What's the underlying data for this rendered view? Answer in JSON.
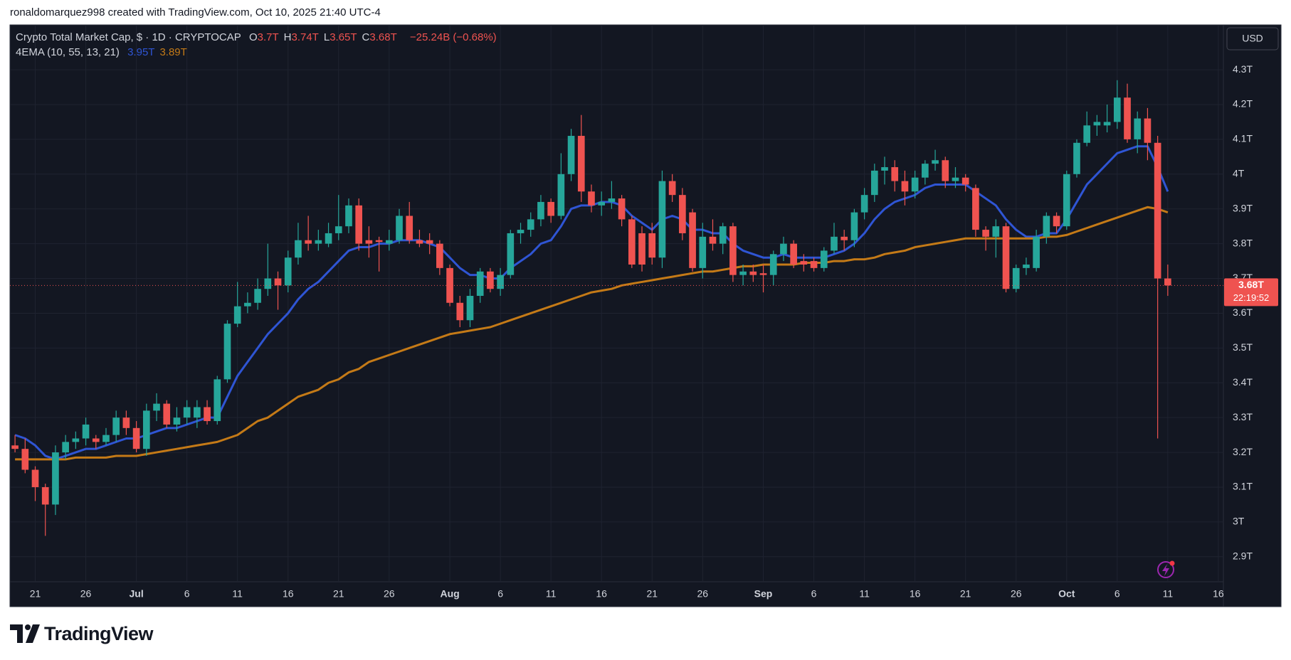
{
  "credit": "ronaldomarquez998 created with TradingView.com, Oct 10, 2025 21:40 UTC-4",
  "brand": "TradingView",
  "chart_data": {
    "type": "candlestick",
    "title": "Crypto Total Market Cap, $ · 1D · CRYPTOCAP",
    "ohlc_legend": [
      {
        "key": "O",
        "value": "3.7T"
      },
      {
        "key": "H",
        "value": "3.74T"
      },
      {
        "key": "L",
        "value": "3.65T"
      },
      {
        "key": "C",
        "value": "3.68T"
      }
    ],
    "change": "−25.24B (−0.68%)",
    "indicator": "4EMA (10, 55, 13, 21)",
    "currency": "USD",
    "last_price": {
      "label": "3.68T",
      "countdown": "22:19:52"
    },
    "up_color": "#26a69a",
    "down_color": "#ef5350",
    "grid": true,
    "ylim": [
      2.828,
      4.429
    ],
    "yticks": [
      {
        "value": 2.9,
        "label": "2.9T"
      },
      {
        "value": 3,
        "label": "3T"
      },
      {
        "value": 3.1,
        "label": "3.1T"
      },
      {
        "value": 3.2,
        "label": "3.2T"
      },
      {
        "value": 3.3,
        "label": "3.3T"
      },
      {
        "value": 3.4,
        "label": "3.4T"
      },
      {
        "value": 3.5,
        "label": "3.5T"
      },
      {
        "value": 3.6,
        "label": "3.6T"
      },
      {
        "value": 3.7,
        "label": "3.7T"
      },
      {
        "value": 3.8,
        "label": "3.8T"
      },
      {
        "value": 3.9,
        "label": "3.9T"
      },
      {
        "value": 4,
        "label": "4T"
      },
      {
        "value": 4.1,
        "label": "4.1T"
      },
      {
        "value": 4.2,
        "label": "4.2T"
      },
      {
        "value": 4.3,
        "label": "4.3T"
      }
    ],
    "categories": [
      null,
      null,
      "21",
      null,
      null,
      null,
      null,
      "26",
      null,
      null,
      null,
      null,
      "Jul",
      null,
      null,
      null,
      null,
      "6",
      null,
      null,
      null,
      null,
      "11",
      null,
      null,
      null,
      null,
      "16",
      null,
      null,
      null,
      null,
      "21",
      null,
      null,
      null,
      null,
      "26",
      null,
      null,
      null,
      null,
      null,
      "Aug",
      null,
      null,
      null,
      null,
      "6",
      null,
      null,
      null,
      null,
      "11",
      null,
      null,
      null,
      null,
      "16",
      null,
      null,
      null,
      null,
      "21",
      null,
      null,
      null,
      null,
      "26",
      null,
      null,
      null,
      null,
      null,
      "Sep",
      null,
      null,
      null,
      null,
      "6",
      null,
      null,
      null,
      null,
      "11",
      null,
      null,
      null,
      null,
      "16",
      null,
      null,
      null,
      null,
      "21",
      null,
      null,
      null,
      null,
      "26",
      null,
      null,
      null,
      null,
      "Oct",
      null,
      null,
      null,
      null,
      "6",
      null,
      null,
      null,
      null,
      "11",
      null,
      null,
      null,
      null,
      "16"
    ],
    "open": [
      3.22,
      3.21,
      3.15,
      3.1,
      3.05,
      3.2,
      3.23,
      3.24,
      3.24,
      3.23,
      3.25,
      3.3,
      3.27,
      3.21,
      3.32,
      3.34,
      3.28,
      3.3,
      3.3,
      3.33,
      3.29,
      3.41,
      3.57,
      3.62,
      3.63,
      3.67,
      3.7,
      3.68,
      3.76,
      3.81,
      3.8,
      3.8,
      3.83,
      3.85,
      3.91,
      3.81,
      3.81,
      3.8,
      3.81,
      3.88,
      3.81,
      3.81,
      3.8,
      3.73,
      3.63,
      3.58,
      3.65,
      3.72,
      3.67,
      3.71,
      3.83,
      3.84,
      3.87,
      3.92,
      3.88,
      4.0,
      4.11,
      3.95,
      3.91,
      3.92,
      3.93,
      3.87,
      3.83,
      3.83,
      3.76,
      3.98,
      3.94,
      3.89,
      3.73,
      3.82,
      3.8,
      3.85,
      3.71,
      3.72,
      3.715,
      3.71,
      3.77,
      3.8,
      3.75,
      3.75,
      3.73,
      3.78,
      3.82,
      3.81,
      3.89,
      3.94,
      4.01,
      4.02,
      3.98,
      3.95,
      3.99,
      4.03,
      4.04,
      3.98,
      3.99,
      3.96,
      3.84,
      3.82,
      3.85,
      3.67,
      3.73,
      3.73,
      3.82,
      3.88,
      3.85,
      4.0,
      4.09,
      4.14,
      4.14,
      4.15,
      4.22,
      4.1,
      4.16,
      4.09,
      3.7,
      null,
      null,
      null,
      null,
      null
    ],
    "high": [
      3.25,
      3.24,
      3.16,
      3.11,
      3.22,
      3.25,
      3.26,
      3.3,
      3.25,
      3.27,
      3.32,
      3.32,
      3.29,
      3.34,
      3.37,
      3.35,
      3.33,
      3.35,
      3.35,
      3.35,
      3.42,
      3.58,
      3.69,
      3.66,
      3.7,
      3.8,
      3.72,
      3.78,
      3.86,
      3.88,
      3.84,
      3.86,
      3.94,
      3.93,
      3.93,
      3.85,
      3.82,
      3.84,
      3.9,
      3.92,
      3.84,
      3.83,
      3.81,
      3.74,
      3.65,
      3.67,
      3.73,
      3.73,
      3.73,
      3.84,
      3.86,
      3.89,
      3.94,
      3.93,
      4.06,
      4.13,
      4.17,
      3.97,
      3.95,
      3.98,
      3.94,
      3.88,
      3.85,
      3.86,
      4.01,
      4.0,
      3.96,
      3.9,
      3.86,
      3.87,
      3.86,
      3.86,
      3.74,
      3.74,
      3.74,
      3.78,
      3.82,
      3.81,
      3.77,
      3.76,
      3.79,
      3.86,
      3.84,
      3.9,
      3.96,
      4.03,
      4.05,
      4.04,
      4.01,
      4.01,
      4.04,
      4.07,
      4.05,
      4.02,
      4.0,
      3.97,
      3.85,
      3.87,
      3.86,
      3.74,
      3.76,
      3.84,
      3.89,
      3.89,
      4.01,
      4.1,
      4.18,
      4.17,
      4.2,
      4.27,
      4.26,
      4.18,
      4.19,
      4.11,
      3.74,
      null,
      null,
      null,
      null,
      null
    ],
    "low": [
      3.2,
      3.14,
      3.06,
      2.96,
      3.02,
      3.18,
      3.21,
      3.22,
      3.21,
      3.22,
      3.23,
      3.25,
      3.2,
      3.19,
      3.29,
      3.27,
      3.26,
      3.28,
      3.27,
      3.28,
      3.28,
      3.4,
      3.56,
      3.6,
      3.61,
      3.65,
      3.61,
      3.66,
      3.74,
      3.78,
      3.78,
      3.79,
      3.81,
      3.83,
      3.78,
      3.76,
      3.72,
      3.78,
      3.8,
      3.8,
      3.79,
      3.77,
      3.71,
      3.62,
      3.56,
      3.56,
      3.63,
      3.66,
      3.65,
      3.7,
      3.8,
      3.82,
      3.85,
      3.86,
      3.87,
      3.98,
      3.92,
      3.89,
      3.88,
      3.9,
      3.85,
      3.73,
      3.72,
      3.74,
      3.73,
      3.92,
      3.81,
      3.72,
      3.7,
      3.78,
      3.77,
      3.69,
      3.68,
      3.69,
      3.66,
      3.68,
      3.75,
      3.73,
      3.72,
      3.72,
      3.72,
      3.77,
      3.78,
      3.79,
      3.87,
      3.92,
      3.97,
      3.95,
      3.91,
      3.93,
      3.97,
      4.01,
      3.96,
      3.96,
      3.95,
      3.82,
      3.78,
      3.76,
      3.66,
      3.66,
      3.71,
      3.72,
      3.8,
      3.83,
      3.84,
      3.99,
      4.08,
      4.11,
      4.12,
      4.13,
      4.09,
      4.06,
      4.04,
      3.24,
      3.65,
      null,
      null,
      null,
      null,
      null
    ],
    "close": [
      3.21,
      3.15,
      3.1,
      3.05,
      3.2,
      3.23,
      3.24,
      3.28,
      3.23,
      3.25,
      3.3,
      3.27,
      3.21,
      3.32,
      3.34,
      3.28,
      3.3,
      3.33,
      3.33,
      3.29,
      3.41,
      3.57,
      3.62,
      3.63,
      3.67,
      3.7,
      3.68,
      3.76,
      3.81,
      3.8,
      3.81,
      3.83,
      3.85,
      3.91,
      3.8,
      3.8,
      3.805,
      3.81,
      3.88,
      3.81,
      3.8,
      3.8,
      3.73,
      3.63,
      3.58,
      3.65,
      3.72,
      3.67,
      3.71,
      3.83,
      3.84,
      3.87,
      3.92,
      3.88,
      4.0,
      4.11,
      3.95,
      3.91,
      3.92,
      3.93,
      3.87,
      3.74,
      3.74,
      3.76,
      3.98,
      3.94,
      3.83,
      3.73,
      3.82,
      3.8,
      3.85,
      3.71,
      3.72,
      3.71,
      3.71,
      3.77,
      3.8,
      3.74,
      3.74,
      3.73,
      3.78,
      3.82,
      3.81,
      3.89,
      3.94,
      4.01,
      4.02,
      3.98,
      3.95,
      3.99,
      4.03,
      4.04,
      3.98,
      3.99,
      3.97,
      3.84,
      3.82,
      3.85,
      3.67,
      3.73,
      3.74,
      3.82,
      3.88,
      3.85,
      4.0,
      4.09,
      4.14,
      4.15,
      4.15,
      4.22,
      4.1,
      4.16,
      4.09,
      3.7,
      3.68,
      null,
      null,
      null,
      null,
      null
    ],
    "series": [
      {
        "color": "#2f55d4",
        "legend_value": "3.95T",
        "values": [
          3.25,
          3.24,
          3.22,
          3.19,
          3.18,
          3.19,
          3.2,
          3.21,
          3.21,
          3.22,
          3.23,
          3.24,
          3.24,
          3.25,
          3.26,
          3.27,
          3.27,
          3.28,
          3.29,
          3.3,
          3.3,
          3.36,
          3.42,
          3.46,
          3.5,
          3.54,
          3.57,
          3.6,
          3.64,
          3.67,
          3.69,
          3.72,
          3.75,
          3.78,
          3.79,
          3.79,
          3.8,
          3.8,
          3.81,
          3.81,
          3.81,
          3.8,
          3.79,
          3.76,
          3.73,
          3.71,
          3.71,
          3.7,
          3.7,
          3.73,
          3.75,
          3.77,
          3.8,
          3.81,
          3.85,
          3.9,
          3.91,
          3.91,
          3.92,
          3.92,
          3.91,
          3.88,
          3.86,
          3.84,
          3.87,
          3.88,
          3.87,
          3.84,
          3.84,
          3.83,
          3.83,
          3.8,
          3.78,
          3.77,
          3.76,
          3.76,
          3.77,
          3.76,
          3.76,
          3.76,
          3.76,
          3.77,
          3.78,
          3.8,
          3.83,
          3.87,
          3.9,
          3.92,
          3.93,
          3.94,
          3.96,
          3.97,
          3.97,
          3.97,
          3.97,
          3.95,
          3.93,
          3.91,
          3.87,
          3.84,
          3.82,
          3.82,
          3.83,
          3.83,
          3.87,
          3.92,
          3.97,
          4.0,
          4.03,
          4.06,
          4.07,
          4.08,
          4.08,
          4.02,
          3.95,
          null,
          null,
          null,
          null,
          null
        ]
      },
      {
        "color": "#c47a17",
        "legend_value": "3.89T",
        "values": [
          3.18,
          3.18,
          3.18,
          3.18,
          3.18,
          3.18,
          3.185,
          3.185,
          3.185,
          3.185,
          3.19,
          3.19,
          3.19,
          3.195,
          3.2,
          3.205,
          3.21,
          3.215,
          3.22,
          3.225,
          3.23,
          3.24,
          3.25,
          3.27,
          3.29,
          3.3,
          3.32,
          3.34,
          3.36,
          3.37,
          3.38,
          3.4,
          3.41,
          3.43,
          3.44,
          3.46,
          3.47,
          3.48,
          3.49,
          3.5,
          3.51,
          3.52,
          3.53,
          3.54,
          3.545,
          3.55,
          3.555,
          3.56,
          3.57,
          3.58,
          3.59,
          3.6,
          3.61,
          3.62,
          3.63,
          3.64,
          3.65,
          3.66,
          3.665,
          3.67,
          3.68,
          3.685,
          3.69,
          3.695,
          3.7,
          3.705,
          3.71,
          3.715,
          3.72,
          3.72,
          3.725,
          3.73,
          3.735,
          3.735,
          3.74,
          3.74,
          3.74,
          3.74,
          3.745,
          3.745,
          3.745,
          3.75,
          3.75,
          3.755,
          3.755,
          3.76,
          3.77,
          3.775,
          3.78,
          3.79,
          3.795,
          3.8,
          3.805,
          3.81,
          3.815,
          3.815,
          3.815,
          3.815,
          3.815,
          3.815,
          3.815,
          3.815,
          3.82,
          3.82,
          3.825,
          3.835,
          3.845,
          3.855,
          3.865,
          3.875,
          3.885,
          3.895,
          3.905,
          3.9,
          3.89,
          null,
          null,
          null,
          null,
          null
        ]
      }
    ]
  }
}
